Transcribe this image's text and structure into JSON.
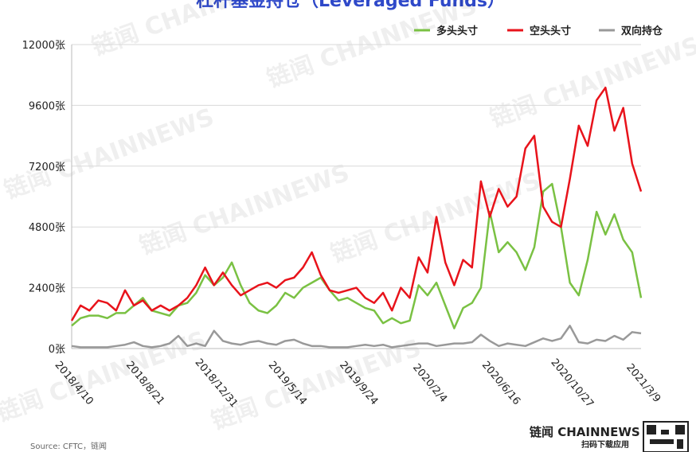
{
  "chart_data": {
    "type": "line",
    "title": "杠杆基金持仓（Leveraged Funds）",
    "source": "Source: CFTC，链闻",
    "watermark": "链闻 CHAINNEWS",
    "logo": "链闻 CHAINNEWS",
    "logo_caption": "扫码下载应用",
    "categories": [
      "2018/4/10",
      null,
      null,
      null,
      null,
      null,
      null,
      null,
      "2018/8/21",
      null,
      null,
      null,
      null,
      null,
      null,
      null,
      "2018/12/31",
      null,
      null,
      null,
      null,
      null,
      null,
      null,
      "2019/5/14",
      null,
      null,
      null,
      null,
      null,
      null,
      null,
      "2019/9/24",
      null,
      null,
      null,
      null,
      null,
      null,
      null,
      "2020/2/4",
      null,
      null,
      null,
      null,
      null,
      null,
      null,
      "2020/6/16",
      null,
      null,
      null,
      null,
      null,
      null,
      null,
      "2020/10/27",
      null,
      null,
      null,
      null,
      null,
      null,
      null,
      "2021/3/9"
    ],
    "series": [
      {
        "name": "多头头寸",
        "color": "#7ac143",
        "values": [
          900,
          1200,
          1300,
          1300,
          1200,
          1400,
          1400,
          1700,
          2000,
          1500,
          1400,
          1300,
          1700,
          1800,
          2200,
          2900,
          2500,
          2800,
          3400,
          2500,
          1800,
          1500,
          1400,
          1700,
          2200,
          2000,
          2400,
          2600,
          2800,
          2300,
          1900,
          2000,
          1800,
          1600,
          1500,
          1000,
          1200,
          1000,
          1100,
          2500,
          2100,
          2600,
          1700,
          800,
          1600,
          1800,
          2400,
          5400,
          3800,
          4200,
          3800,
          3100,
          4000,
          6200,
          6500,
          4800,
          2600,
          2100,
          3500,
          5400,
          4500,
          5300,
          4300,
          3800,
          2000
        ]
      },
      {
        "name": "空头头寸",
        "color": "#e8131b",
        "values": [
          1100,
          1700,
          1500,
          1900,
          1800,
          1500,
          2300,
          1700,
          1900,
          1500,
          1700,
          1500,
          1700,
          2000,
          2500,
          3200,
          2500,
          3000,
          2500,
          2100,
          2300,
          2500,
          2600,
          2400,
          2700,
          2800,
          3200,
          3800,
          2900,
          2300,
          2200,
          2300,
          2400,
          2000,
          1800,
          2200,
          1500,
          2400,
          2000,
          3600,
          3000,
          5200,
          3400,
          2500,
          3500,
          3200,
          6600,
          5200,
          6300,
          5600,
          6000,
          7900,
          8400,
          5600,
          5000,
          4800,
          6700,
          8800,
          8000,
          9800,
          10300,
          8600,
          9500,
          7300,
          6200
        ]
      },
      {
        "name": "双向持仓",
        "color": "#999999",
        "values": [
          100,
          50,
          50,
          50,
          50,
          100,
          150,
          250,
          100,
          50,
          100,
          200,
          500,
          100,
          200,
          100,
          700,
          300,
          200,
          150,
          250,
          300,
          200,
          150,
          300,
          350,
          200,
          100,
          100,
          50,
          50,
          50,
          100,
          150,
          100,
          150,
          50,
          100,
          150,
          200,
          200,
          100,
          150,
          200,
          200,
          250,
          550,
          300,
          100,
          200,
          150,
          100,
          250,
          400,
          300,
          400,
          900,
          250,
          200,
          350,
          300,
          500,
          350,
          650,
          600
        ]
      }
    ],
    "ylim": [
      0,
      12000
    ],
    "yticks": [
      {
        "value": 0,
        "label": "0张"
      },
      {
        "value": 2400,
        "label": "2400张"
      },
      {
        "value": 4800,
        "label": "4800张"
      },
      {
        "value": 7200,
        "label": "7200张"
      },
      {
        "value": 9600,
        "label": "9600张"
      },
      {
        "value": 12000,
        "label": "12000张"
      }
    ],
    "grid": true,
    "legend": "top-right"
  }
}
